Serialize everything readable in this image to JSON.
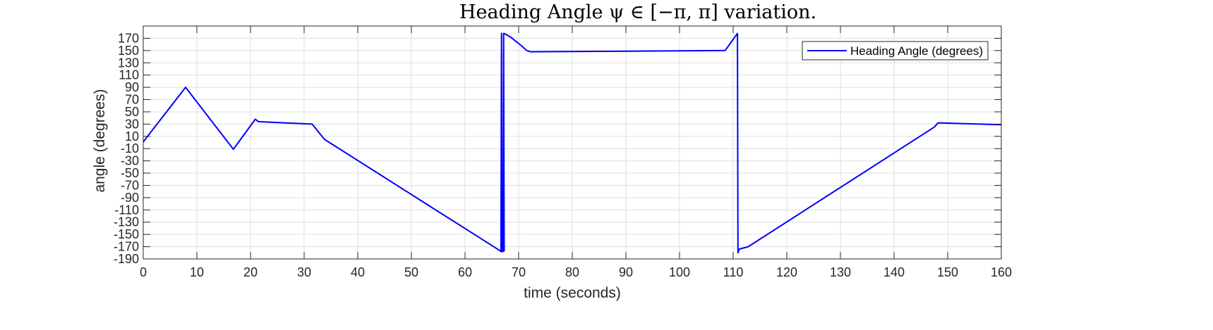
{
  "chart_data": {
    "type": "line",
    "title": "Heading Angle ψ ∈ [−π, π] variation.",
    "xlabel": "time (seconds)",
    "ylabel": "angle (degrees)",
    "xlim": [
      0,
      160
    ],
    "ylim": [
      -190,
      190
    ],
    "xticks": [
      0,
      10,
      20,
      30,
      40,
      50,
      60,
      70,
      80,
      90,
      100,
      110,
      120,
      130,
      140,
      150,
      160
    ],
    "yticks": [
      -190,
      -170,
      -150,
      -130,
      -110,
      -90,
      -70,
      -50,
      -30,
      -10,
      10,
      30,
      50,
      70,
      90,
      110,
      130,
      150,
      170
    ],
    "grid": true,
    "legend_position": "top-right",
    "line_color": "#0000ff",
    "series": [
      {
        "name": "Heading Angle (degrees)",
        "segments": [
          {
            "x": [
              0,
              7.9,
              16.8,
              20.9,
              21.5,
              31.5,
              33.8,
              66.6,
              66.7,
              66.8,
              66.9,
              67.1,
              67.2,
              67.3
            ],
            "y": [
              1,
              90,
              -11,
              38,
              34,
              30,
              5,
              -177,
              -178,
              178,
              -178,
              -178,
              178,
              -178
            ]
          },
          {
            "x": [
              67.3,
              68.5,
              70.5,
              71.5,
              72.2,
              108.5,
              110.8,
              110.9,
              111.1,
              112.8,
              147.5,
              148.2,
              160
            ],
            "y": [
              178,
              172,
              158,
              150,
              148,
              150,
              178,
              -180,
              -174,
              -170,
              25,
              32,
              29
            ]
          }
        ]
      }
    ]
  }
}
